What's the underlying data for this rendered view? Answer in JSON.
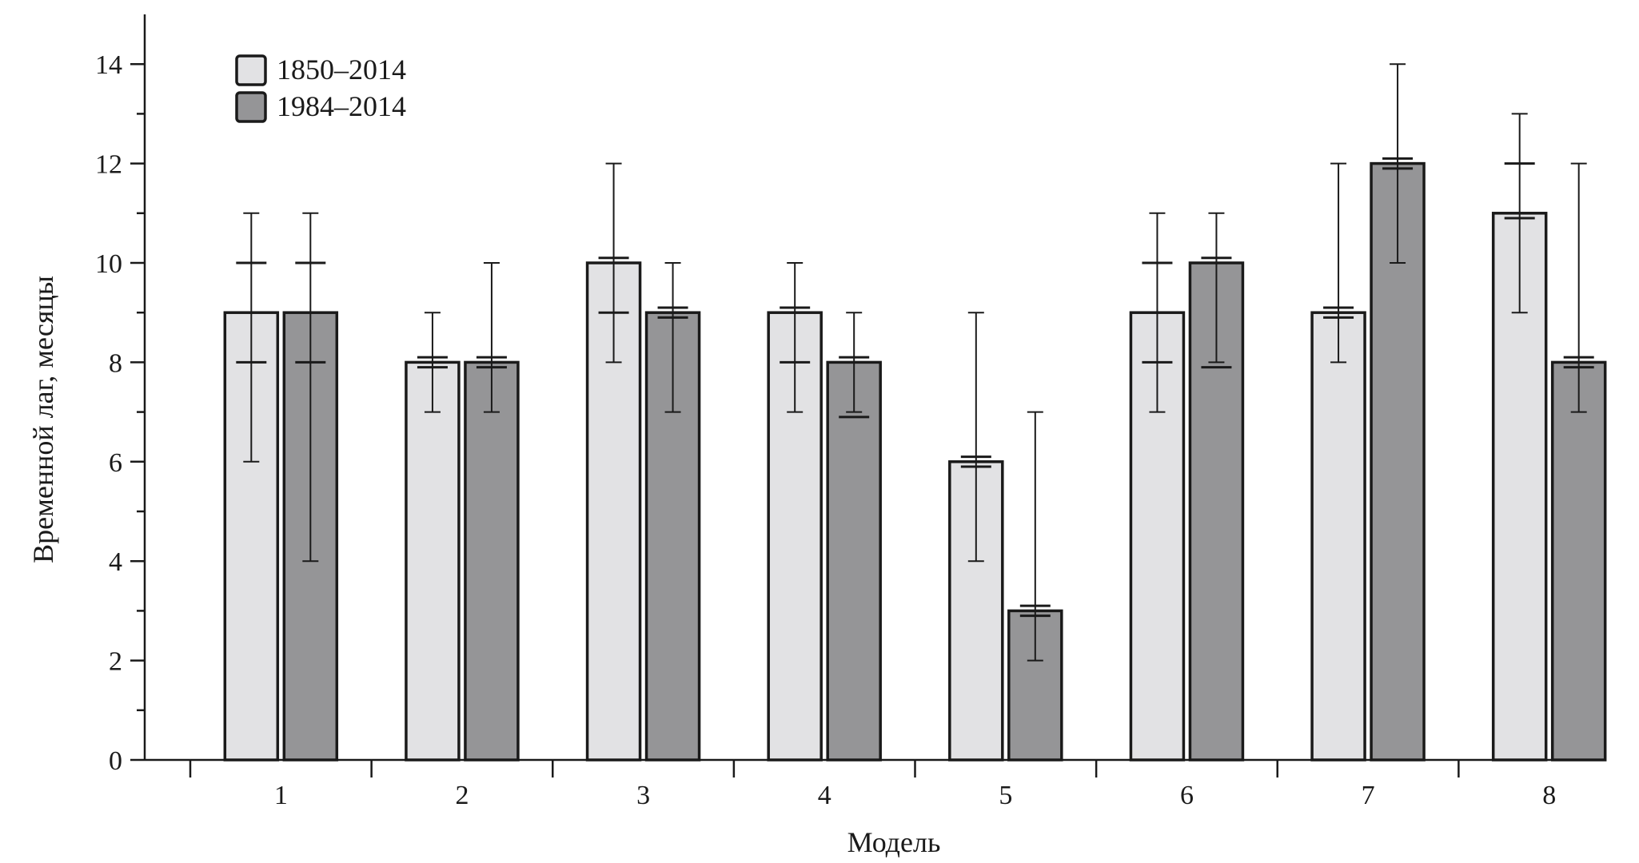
{
  "chart_data": {
    "type": "bar",
    "title": "",
    "xlabel": "Модель",
    "ylabel": "Временной лаг, месяцы",
    "ylim": [
      0,
      14.5
    ],
    "yticks": [
      0,
      2,
      4,
      6,
      8,
      10,
      12,
      14
    ],
    "categories": [
      "1",
      "2",
      "3",
      "4",
      "5",
      "6",
      "7",
      "8"
    ],
    "legend_position": "top-left",
    "series": [
      {
        "name": "1850–2014",
        "color": "#e2e2e4",
        "values": [
          9,
          8,
          10,
          9,
          6,
          9,
          9,
          11
        ],
        "error_outer": [
          [
            6,
            11
          ],
          [
            7,
            9
          ],
          [
            8,
            12
          ],
          [
            7,
            10
          ],
          [
            4,
            9
          ],
          [
            7,
            11
          ],
          [
            8,
            12
          ],
          [
            9,
            13
          ]
        ],
        "error_inner": [
          [
            8,
            10
          ],
          [
            7.9,
            8.1
          ],
          [
            9,
            10.1
          ],
          [
            8,
            9.1
          ],
          [
            5.9,
            6.1
          ],
          [
            8,
            10
          ],
          [
            8.9,
            9.1
          ],
          [
            10.9,
            12
          ]
        ]
      },
      {
        "name": "1984–2014",
        "color": "#959597",
        "values": [
          9,
          8,
          9,
          8,
          3,
          10,
          12,
          8
        ],
        "error_outer": [
          [
            4,
            11
          ],
          [
            7,
            10
          ],
          [
            7,
            10
          ],
          [
            7,
            9
          ],
          [
            2,
            7
          ],
          [
            8,
            11
          ],
          [
            10,
            14
          ],
          [
            7,
            12
          ]
        ],
        "error_inner": [
          [
            8,
            10
          ],
          [
            7.9,
            8.1
          ],
          [
            8.9,
            9.1
          ],
          [
            6.9,
            8.1
          ],
          [
            2.9,
            3.1
          ],
          [
            7.9,
            10.1
          ],
          [
            11.9,
            12.1
          ],
          [
            7.9,
            8.1
          ]
        ]
      }
    ]
  }
}
